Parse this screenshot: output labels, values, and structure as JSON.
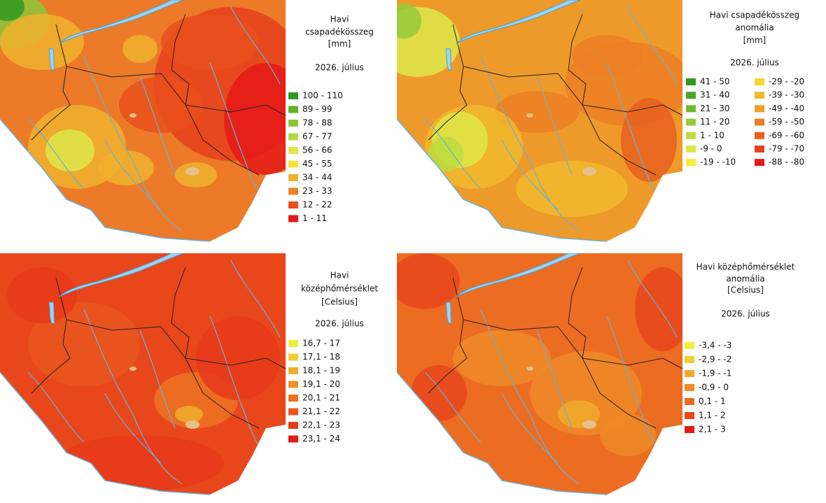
{
  "panels": [
    {
      "title": [
        "Havi",
        "csapadékösszeg",
        "[mm]"
      ],
      "date": "2026. július",
      "legend": [
        {
          "label": "100 - 110",
          "color": "#2f9a1f"
        },
        {
          "label": "89 - 99",
          "color": "#5fb02a"
        },
        {
          "label": "78 - 88",
          "color": "#8dc63a"
        },
        {
          "label": "67 - 77",
          "color": "#b6d83f"
        },
        {
          "label": "56 - 66",
          "color": "#dde84a"
        },
        {
          "label": "45 - 55",
          "color": "#f3e43c"
        },
        {
          "label": "34 - 44",
          "color": "#f0b12d"
        },
        {
          "label": "23 - 33",
          "color": "#ed8324"
        },
        {
          "label": "12 - 22",
          "color": "#e9501c"
        },
        {
          "label": "1 - 11",
          "color": "#e51a17"
        }
      ]
    },
    {
      "title": [
        "Havi csapadékösszeg",
        "anomália",
        "[mm]"
      ],
      "date": "2026. július",
      "legend": [
        {
          "label": "41 - 50",
          "color": "#2f9a1f"
        },
        {
          "label": "31 - 40",
          "color": "#4aa626"
        },
        {
          "label": "21 - 30",
          "color": "#6fb92f"
        },
        {
          "label": "11 - 20",
          "color": "#95c93a"
        },
        {
          "label": "1 - 10",
          "color": "#bcdc40"
        },
        {
          "label": "-9 - 0",
          "color": "#dde84a"
        },
        {
          "label": "-19 - -10",
          "color": "#f4ee3a"
        },
        {
          "label": "-29 - -20",
          "color": "#f5d634"
        },
        {
          "label": "-39 - -30",
          "color": "#f0b82e"
        },
        {
          "label": "-49 - -40",
          "color": "#ee9d29"
        },
        {
          "label": "-59 - -50",
          "color": "#ec7f24"
        },
        {
          "label": "-69 - -60",
          "color": "#e8601e"
        },
        {
          "label": "-79 - -70",
          "color": "#e6421b"
        },
        {
          "label": "-88 - -80",
          "color": "#e31a17"
        }
      ]
    },
    {
      "title": [
        "Havi",
        "középhőmérséklet",
        "[Celsius]"
      ],
      "date": "2026. július",
      "legend": [
        {
          "label": "16,7 - 17",
          "color": "#f4ee3a"
        },
        {
          "label": "17,1 - 18",
          "color": "#f5cc33"
        },
        {
          "label": "18,1 - 19",
          "color": "#f0ae2d"
        },
        {
          "label": "19,1 - 20",
          "color": "#ee9128"
        },
        {
          "label": "20,1 - 21",
          "color": "#ec7422"
        },
        {
          "label": "21,1 - 22",
          "color": "#e9561e"
        },
        {
          "label": "22,1 - 23",
          "color": "#e63a1a"
        },
        {
          "label": "23,1 - 24",
          "color": "#e31a17"
        }
      ]
    },
    {
      "title": [
        "Havi középhőmérséklet",
        "anomália",
        "[Celsius]"
      ],
      "date": "2026. július",
      "legend": [
        {
          "label": "-3,4 - -3",
          "color": "#f4ee3a"
        },
        {
          "label": "-2,9 - -2",
          "color": "#f2cd34"
        },
        {
          "label": "-1,9 - -1",
          "color": "#f0ab2d"
        },
        {
          "label": "-0,9 - 0",
          "color": "#ee8a27"
        },
        {
          "label": "0,1 - 1",
          "color": "#eb6a21"
        },
        {
          "label": "1,1 - 2",
          "color": "#e8461c"
        },
        {
          "label": "2,1 - 3",
          "color": "#e31a17"
        }
      ]
    }
  ]
}
